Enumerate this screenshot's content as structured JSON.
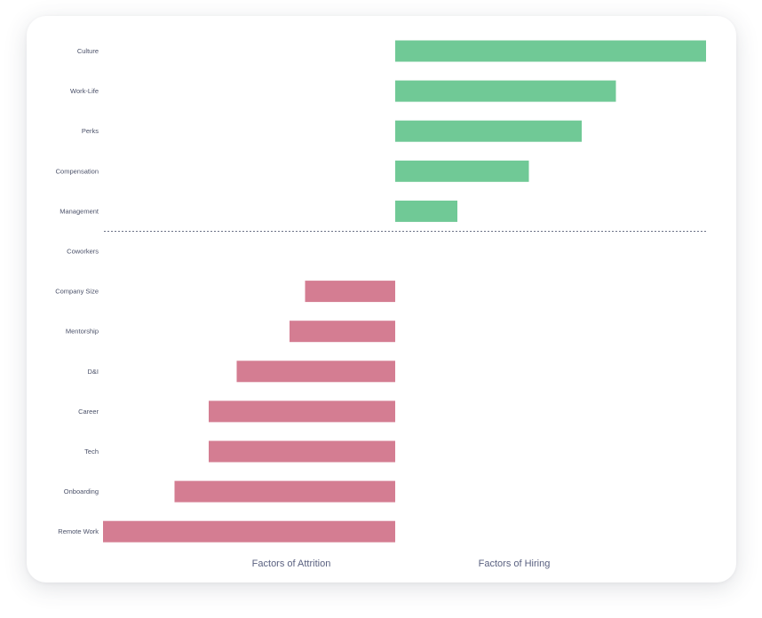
{
  "chart_data": {
    "type": "bar",
    "orientation": "horizontal-diverging",
    "categories": [
      "Culture",
      "Work-Life",
      "Perks",
      "Compensation",
      "Management",
      "Coworkers",
      "Company Size",
      "Mentorship",
      "D&I",
      "Career",
      "Tech",
      "Onboarding",
      "Remote Work"
    ],
    "values": [
      100,
      71,
      60,
      43,
      20,
      0,
      -29,
      -34,
      -51,
      -60,
      -60,
      -71,
      -94
    ],
    "xlim": [
      -94,
      100
    ],
    "grid": false,
    "divider": "dotted line between Management and Coworkers",
    "labels": {
      "attrition": "Factors of Attrition",
      "hiring": "Factors of Hiring"
    },
    "colors": {
      "hiring": "#70c996",
      "attrition": "#d47d92",
      "divider": "#6b7186",
      "label": "#4a5068",
      "axis_title": "#5a6180"
    }
  }
}
